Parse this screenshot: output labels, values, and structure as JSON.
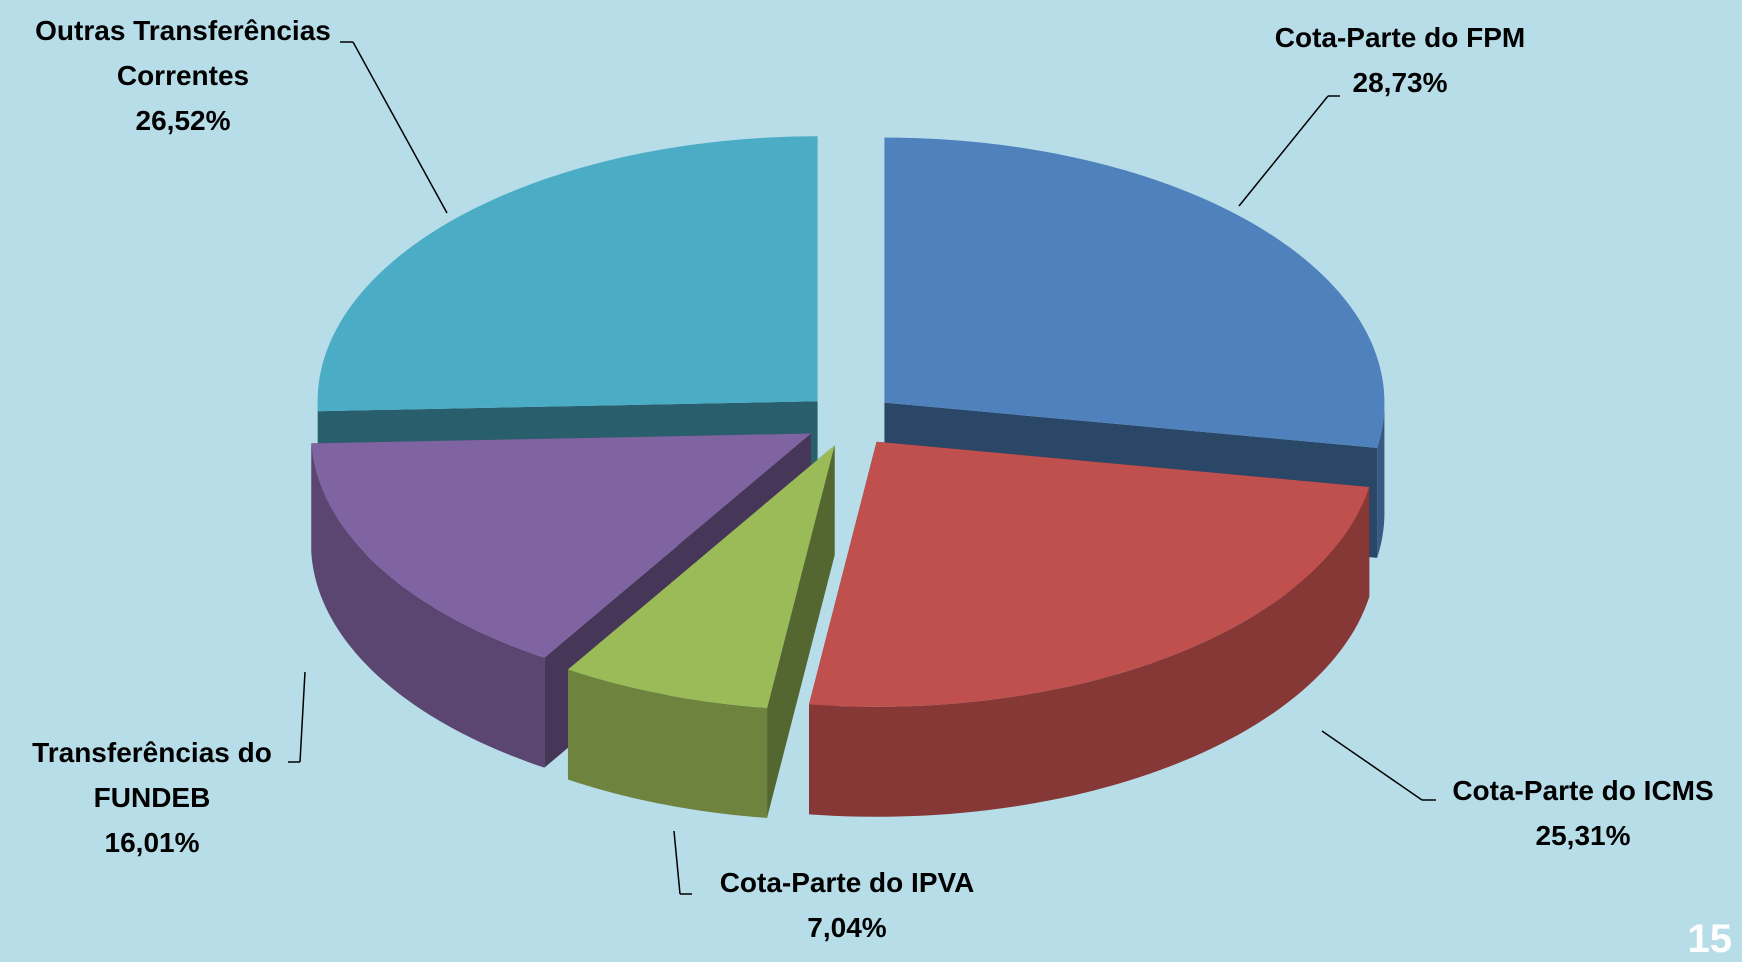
{
  "chart_data": {
    "type": "pie",
    "categories": [
      "Cota-Parte do FPM",
      "Cota-Parte do ICMS",
      "Cota-Parte do IPVA",
      "Transferências do FUNDEB",
      "Outras Transferências Correntes"
    ],
    "values": [
      28.73,
      25.31,
      7.04,
      16.01,
      26.52
    ],
    "value_labels": [
      "28,73%",
      "25,31%",
      "7,04%",
      "16,01%",
      "26,52%"
    ],
    "colors": [
      "#4f81bd",
      "#c0504d",
      "#9bbb59",
      "#8064a2",
      "#4bacc6"
    ],
    "page_number": "15"
  }
}
